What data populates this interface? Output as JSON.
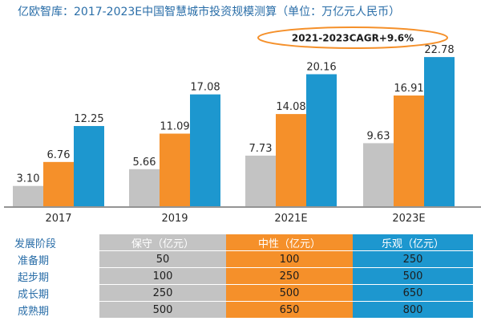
{
  "chart_data": {
    "type": "bar",
    "title": "亿欧智库：2017-2023E中国智慧城市投资规模测算（单位：万亿元人民币）",
    "annotation": "2021-2023CAGR+9.6%",
    "categories": [
      "2017",
      "2019",
      "2021E",
      "2023E"
    ],
    "series": [
      {
        "name": "保守",
        "color": "#c3c3c3",
        "values": [
          3.1,
          5.66,
          7.73,
          9.63
        ],
        "labels": [
          "3.10",
          "5.66",
          "7.73",
          "9.63"
        ]
      },
      {
        "name": "中性",
        "color": "#f5902a",
        "values": [
          6.76,
          11.09,
          14.08,
          16.91
        ],
        "labels": [
          "6.76",
          "11.09",
          "14.08",
          "16.91"
        ]
      },
      {
        "name": "乐观",
        "color": "#1d97cf",
        "values": [
          12.25,
          17.08,
          20.16,
          22.78
        ],
        "labels": [
          "12.25",
          "17.08",
          "20.16",
          "22.78"
        ]
      }
    ],
    "ylim": [
      0,
      24
    ],
    "grid": false
  },
  "table": {
    "headers": [
      "发展阶段",
      "保守（亿元）",
      "中性（亿元）",
      "乐观（亿元）"
    ],
    "rows": [
      [
        "准备期",
        "50",
        "100",
        "250"
      ],
      [
        "起步期",
        "100",
        "250",
        "500"
      ],
      [
        "成长期",
        "250",
        "500",
        "650"
      ],
      [
        "成熟期",
        "500",
        "650",
        "800"
      ]
    ]
  },
  "colors": {
    "title": "#2a6ea8",
    "conservative": "#c3c3c3",
    "neutral": "#f5902a",
    "optimistic": "#1d97cf",
    "axis": "#2a2a2a",
    "label": "#2a2a2a"
  }
}
